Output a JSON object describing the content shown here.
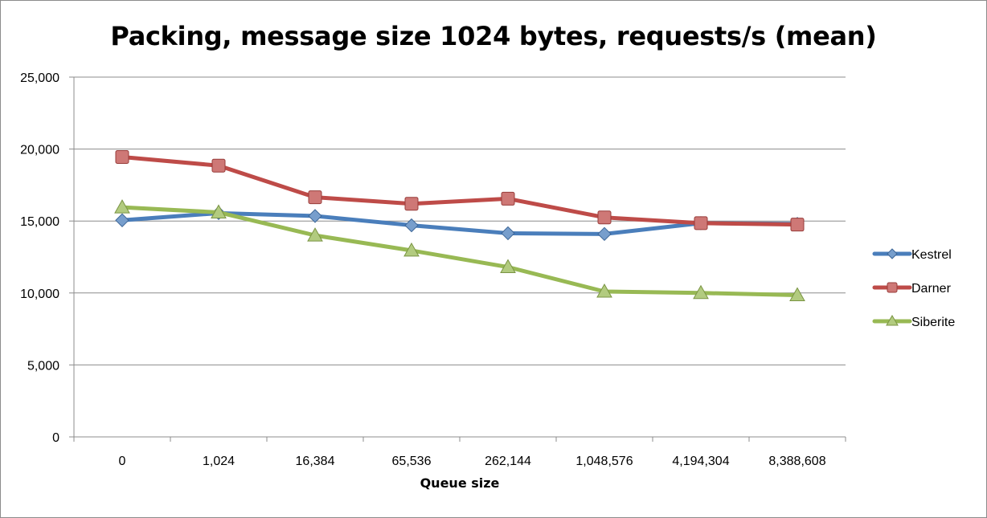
{
  "chart_data": {
    "type": "line",
    "title": "Packing, message size 1024 bytes, requests/s (mean)",
    "xlabel": "Queue size",
    "ylabel": "",
    "categories": [
      "0",
      "1,024",
      "16,384",
      "65,536",
      "262,144",
      "1,048,576",
      "4,194,304",
      "8,388,608"
    ],
    "ylim": [
      0,
      25000
    ],
    "yticks": [
      0,
      5000,
      10000,
      15000,
      20000,
      25000
    ],
    "ytick_labels": [
      "0",
      "5,000",
      "10,000",
      "15,000",
      "20,000",
      "25,000"
    ],
    "grid": "horizontal",
    "legend_position": "right",
    "series": [
      {
        "name": "Kestrel",
        "marker": "diamond",
        "color": "#4a7ebb",
        "values": [
          15050,
          15550,
          15350,
          14700,
          14150,
          14100,
          14850,
          14800
        ]
      },
      {
        "name": "Darner",
        "marker": "square",
        "color": "#be4b48",
        "values": [
          19450,
          18850,
          16650,
          16200,
          16550,
          15250,
          14850,
          14750
        ]
      },
      {
        "name": "Siberite",
        "marker": "triangle",
        "color": "#98b954",
        "values": [
          15950,
          15600,
          14000,
          12950,
          11800,
          10100,
          10000,
          9850
        ]
      }
    ]
  }
}
